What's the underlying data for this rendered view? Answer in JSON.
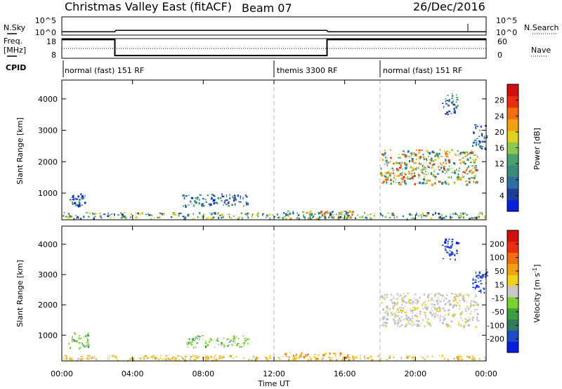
{
  "header": {
    "radar": "Christmas Valley East (fitACF)",
    "beam": "Beam 07",
    "date": "26/Dec/2016"
  },
  "side_labels": {
    "nsky": "N.Sky",
    "nsearch": "N.Search",
    "freq_line1": "Freq.",
    "freq_line2": "[MHz]",
    "nave": "Nave",
    "cpid": "CPID"
  },
  "chart_data": [
    {
      "type": "line",
      "name": "noise",
      "ylabel": "N.Sky",
      "y2label": "N.Search",
      "y_ticks": [
        "10^5",
        "10^0"
      ],
      "y2_ticks": [
        "10^5",
        "10^0"
      ],
      "x_hours": [
        0,
        3.0,
        3.05,
        15.0,
        15.05,
        24
      ],
      "values_rel": [
        0.18,
        0.18,
        0.26,
        0.26,
        0.18,
        0.18
      ]
    },
    {
      "type": "line",
      "name": "frequency",
      "ylabel": "Freq. [MHz]",
      "y2label": "Nave",
      "ylim": [
        8,
        18
      ],
      "y2lim": [
        0,
        60
      ],
      "y_ticks": [
        "18",
        "8"
      ],
      "y2_ticks": [
        "60",
        "0"
      ],
      "x_hours": [
        0,
        3.0,
        3.0,
        15.0,
        15.0,
        24
      ],
      "freq_mhz": [
        17.5,
        17.5,
        9.4,
        9.4,
        17.5,
        17.5
      ],
      "nave_dotted": 30
    },
    {
      "type": "table",
      "name": "cpid",
      "segments": [
        {
          "label": "normal (fast) 151 RF",
          "start_hour": 0
        },
        {
          "label": "themis 3300 RF",
          "start_hour": 12
        },
        {
          "label": "normal (fast) 151 RF",
          "start_hour": 18
        }
      ]
    },
    {
      "type": "heatmap",
      "name": "power",
      "ylabel": "Slant Range [km]",
      "ylim": [
        150,
        4600
      ],
      "y_ticks": [
        1000,
        2000,
        3000,
        4000
      ],
      "colorbar_label": "Power [dB]",
      "colorbar_ticks": [
        4,
        8,
        12,
        16,
        20,
        24,
        28
      ],
      "colorbar_colors": [
        "#0a1ee0",
        "#1e3c9a",
        "#2e6ea0",
        "#3c8a7a",
        "#48a06a",
        "#8cc850",
        "#e0d020",
        "#f0a010",
        "#f07010",
        "#e83010",
        "#d01010"
      ],
      "xlim_hours": [
        0,
        24
      ],
      "dashed_lines_hours": [
        12,
        18
      ],
      "regions": [
        {
          "x": [
            0.3,
            1.5
          ],
          "y": [
            600,
            1000
          ],
          "level": "low"
        },
        {
          "x": [
            6.8,
            10.5
          ],
          "y": [
            600,
            1000
          ],
          "level": "low"
        },
        {
          "x": [
            0,
            24
          ],
          "y": [
            200,
            400
          ],
          "level": "mid"
        },
        {
          "x": [
            12.5,
            16.5
          ],
          "y": [
            200,
            450
          ],
          "level": "high"
        },
        {
          "x": [
            18,
            23.5
          ],
          "y": [
            1300,
            2400
          ],
          "level": "high"
        },
        {
          "x": [
            21.5,
            22.4
          ],
          "y": [
            3500,
            4200
          ],
          "level": "low"
        },
        {
          "x": [
            23.2,
            24
          ],
          "y": [
            2400,
            3200
          ],
          "level": "low"
        }
      ]
    },
    {
      "type": "heatmap",
      "name": "velocity",
      "ylabel": "Slant Range [km]",
      "xlabel": "Time UT",
      "ylim": [
        150,
        4600
      ],
      "y_ticks": [
        1000,
        2000,
        3000,
        4000
      ],
      "x_ticks": [
        "00:00",
        "04:00",
        "08:00",
        "12:00",
        "16:00",
        "20:00",
        "00:00"
      ],
      "x_tick_hours": [
        0,
        4,
        8,
        12,
        16,
        20,
        24
      ],
      "colorbar_label": "Velocity [m s^-1]",
      "colorbar_ticks": [
        200,
        100,
        50,
        15,
        -15,
        -50,
        -100,
        -200
      ],
      "colorbar_colors": [
        "#0a1ee0",
        "#1e4ac8",
        "#2e7a5a",
        "#3ca040",
        "#7cd030",
        "#c8c8c8",
        "#f0d020",
        "#f0a010",
        "#f07010",
        "#e83010",
        "#d01010"
      ],
      "xlim_hours": [
        0,
        24
      ],
      "dashed_lines_hours": [
        12,
        18
      ],
      "regions": [
        {
          "x": [
            0.3,
            1.5
          ],
          "y": [
            600,
            1100
          ],
          "level": "green"
        },
        {
          "x": [
            7,
            10.5
          ],
          "y": [
            600,
            1000
          ],
          "level": "green"
        },
        {
          "x": [
            0,
            24
          ],
          "y": [
            200,
            350
          ],
          "level": "yellow"
        },
        {
          "x": [
            12.5,
            16.5
          ],
          "y": [
            200,
            450
          ],
          "level": "orange"
        },
        {
          "x": [
            18,
            23.5
          ],
          "y": [
            1300,
            2400
          ],
          "level": "gray"
        },
        {
          "x": [
            21.5,
            22.4
          ],
          "y": [
            3500,
            4200
          ],
          "level": "blue"
        },
        {
          "x": [
            23.2,
            24
          ],
          "y": [
            2400,
            3200
          ],
          "level": "blue"
        }
      ]
    }
  ]
}
